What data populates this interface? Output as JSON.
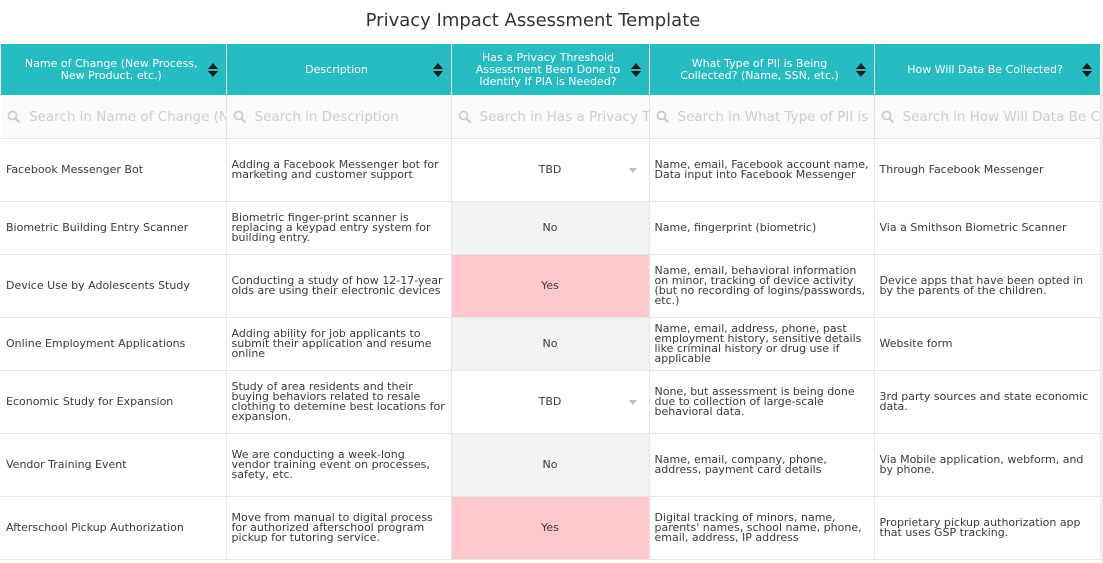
{
  "title": "Privacy Impact Assessment Template",
  "columns": [
    {
      "label": "Name of Change (New Process, New Product, etc.)",
      "placeholder": "Search in Name of Change (New Process, New Product, etc.)"
    },
    {
      "label": "Description",
      "placeholder": "Search in Description"
    },
    {
      "label": "Has a Privacy Threshold Assessment Been Done to Identify If PIA is Needed?",
      "placeholder": "Search in Has a Privacy Threshold Assessment Been Done to Identify If PIA is Needed?"
    },
    {
      "label": "What Type of PII is Being Collected? (Name, SSN, etc.)",
      "placeholder": "Search in What Type of PII is Being Collected? (Name, SSN, etc.)"
    },
    {
      "label": "How Will Data Be Collected?",
      "placeholder": "Search in How Will Data Be Collected?"
    }
  ],
  "rows": [
    {
      "name": "Facebook Messenger Bot",
      "description": "Adding a Facebook Messenger bot for marketing and customer support",
      "pta": "TBD",
      "pii": "Name, email, Facebook account name, Data input into Facebook Messenger",
      "collection": "Through Facebook Messenger"
    },
    {
      "name": "Biometric Building Entry Scanner",
      "description": "Biometric finger-print scanner is replacing a keypad entry system for building entry.",
      "pta": "No",
      "pii": "Name, fingerprint (biometric)",
      "collection": "Via a Smithson Biometric Scanner"
    },
    {
      "name": "Device Use by Adolescents Study",
      "description": "Conducting a study of how 12-17-year olds are using their electronic devices",
      "pta": "Yes",
      "pii": "Name, email, behavioral information on minor, tracking of device activity (but no recording of logins/passwords, etc.)",
      "collection": "Device apps that have been opted in by the parents of the children."
    },
    {
      "name": "Online Employment Applications",
      "description": "Adding ability for job applicants to submit their application and resume online",
      "pta": "No",
      "pii": "Name, email, address, phone, past employment history, sensitive details like criminal history or drug use if applicable",
      "collection": "Website form"
    },
    {
      "name": "Economic Study for Expansion",
      "description": "Study of area residents and their buying behaviors related to resale clothing to detemine best locations for expansion.",
      "pta": "TBD",
      "pii": "None, but assessment is being done due to collection of large-scale behavioral data.",
      "collection": "3rd party sources and state economic data."
    },
    {
      "name": "Vendor Training Event",
      "description": "We are conducting a week-long vendor training event on processes, safety, etc.",
      "pta": "No",
      "pii": "Name, email, company, phone, address, payment card details",
      "collection": "Via Mobile application, webform, and by phone."
    },
    {
      "name": "Afterschool Pickup Authorization",
      "description": "Move from manual to digital process for authorized afterschool program pickup for tutoring service.",
      "pta": "Yes",
      "pii": "Digital tracking of minors, name, parents' names, school name, phone, email, address, IP address",
      "collection": "Proprietary pickup authorization app that uses GSP tracking."
    }
  ],
  "colors": {
    "header": "#26bcc1",
    "yes": "#ffc8cc",
    "no": "#f3f3f3"
  },
  "icons": {
    "search": "magnifier-icon",
    "sort": "sort-arrows-icon",
    "dropdown": "chevron-down-icon"
  }
}
